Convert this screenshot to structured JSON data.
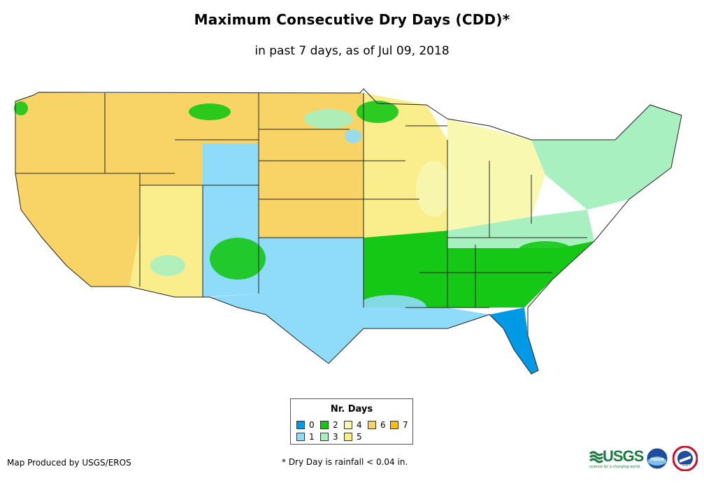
{
  "title": "Maximum Consecutive Dry Days (CDD)*",
  "subtitle": "in past 7 days, as of Jul 09, 2018",
  "legend": {
    "title": "Nr. Days",
    "items": [
      {
        "label": "0",
        "color": "#0099e6"
      },
      {
        "label": "1",
        "color": "#8fdcfa"
      },
      {
        "label": "2",
        "color": "#16c816"
      },
      {
        "label": "3",
        "color": "#a8f0c0"
      },
      {
        "label": "4",
        "color": "#f8f8b0"
      },
      {
        "label": "5",
        "color": "#faed8c"
      },
      {
        "label": "6",
        "color": "#f8d466"
      },
      {
        "label": "7",
        "color": "#f8bd10"
      }
    ]
  },
  "footer": {
    "credit": "Map Produced by USGS/EROS",
    "note": "* Dry Day is rainfall < 0.04 in."
  },
  "logos": {
    "usgs": "USGS",
    "usgs_tagline": "science for a changing world",
    "noaa": "noaa",
    "nws": "NWS"
  },
  "regions": [
    {
      "name": "pacific-northwest",
      "days": 6
    },
    {
      "name": "california-great-basin",
      "days": 6
    },
    {
      "name": "northern-rockies",
      "days": 6
    },
    {
      "name": "southwest",
      "days": 5
    },
    {
      "name": "central-plains",
      "days": 6
    },
    {
      "name": "upper-midwest",
      "days": 5
    },
    {
      "name": "great-lakes",
      "days": 4
    },
    {
      "name": "northeast",
      "days": 3
    },
    {
      "name": "mid-atlantic",
      "days": 3
    },
    {
      "name": "southeast",
      "days": 2
    },
    {
      "name": "gulf-coast",
      "days": 1
    },
    {
      "name": "colorado-rockies",
      "days": 1
    },
    {
      "name": "florida",
      "days": 0
    }
  ]
}
